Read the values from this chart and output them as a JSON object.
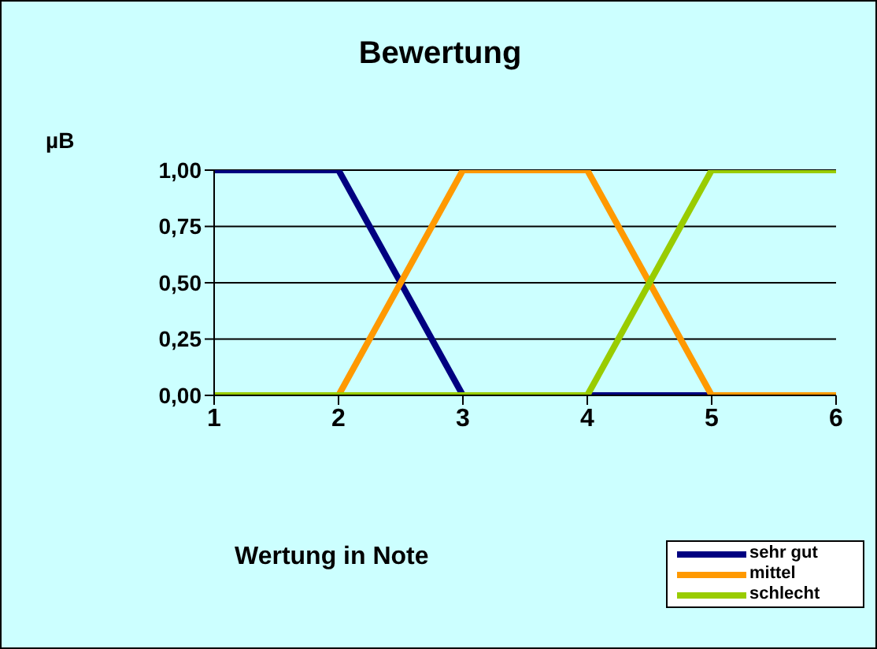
{
  "chart_data": {
    "type": "line",
    "title": "Bewertung",
    "ylabel": "µB",
    "xlabel": "Wertung in Note",
    "x": [
      1,
      2,
      3,
      4,
      5,
      6
    ],
    "series": [
      {
        "name": "sehr gut",
        "color": "#000080",
        "values": [
          1,
          1,
          0,
          0,
          0,
          0
        ]
      },
      {
        "name": "mittel",
        "color": "#ff9900",
        "values": [
          0,
          0,
          1,
          1,
          0,
          0
        ]
      },
      {
        "name": "schlecht",
        "color": "#99cc00",
        "values": [
          0,
          0,
          0,
          0,
          1,
          1
        ]
      }
    ],
    "xlim": [
      1,
      6
    ],
    "xticks": [
      1,
      2,
      3,
      4,
      5,
      6
    ],
    "ylim": [
      0,
      1
    ],
    "yticks": [
      {
        "value": 0,
        "label": "0,00"
      },
      {
        "value": 0.25,
        "label": "0,25"
      },
      {
        "value": 0.5,
        "label": "0,50"
      },
      {
        "value": 0.75,
        "label": "0,75"
      },
      {
        "value": 1,
        "label": "1,00"
      }
    ],
    "grid": "y",
    "legend": "bottom right"
  }
}
